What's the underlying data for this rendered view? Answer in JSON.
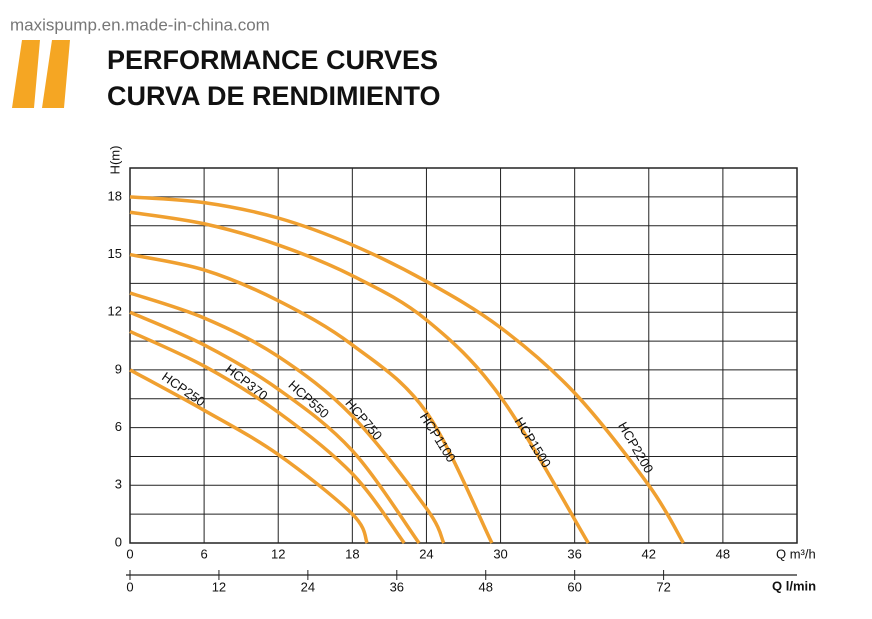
{
  "watermark": "maxispump.en.made-in-china.com",
  "chart_data": {
    "type": "line",
    "title": "PERFORMANCE CURVES",
    "subtitle": "CURVA DE RENDIMIENTO",
    "y_label": "H(m)",
    "x_label": "Q m³/h",
    "x2_label": "Q l/min",
    "xlim": [
      0,
      54
    ],
    "xticks": [
      0,
      6,
      12,
      18,
      24,
      30,
      36,
      42,
      48
    ],
    "ylim": [
      0,
      19.5
    ],
    "yticks": [
      0,
      3,
      6,
      9,
      12,
      15,
      18
    ],
    "ygrid": [
      1.5,
      4.5,
      7.5,
      10.5,
      13.5,
      16.5,
      19.5
    ],
    "x2lim": [
      0,
      90
    ],
    "x2ticks": [
      0,
      12,
      24,
      36,
      48,
      60,
      72
    ],
    "grid": true,
    "series": [
      {
        "name": "HCP250",
        "color": "#f0a030",
        "x": [
          0,
          6,
          12,
          18,
          19.2
        ],
        "values": [
          9,
          6.9,
          4.6,
          1.5,
          0
        ]
      },
      {
        "name": "HCP370",
        "color": "#f0a030",
        "x": [
          0,
          6,
          12,
          18,
          22.2
        ],
        "values": [
          11,
          9.2,
          6.8,
          3.6,
          0
        ]
      },
      {
        "name": "HCP550",
        "color": "#f0a030",
        "x": [
          0,
          6,
          12,
          18,
          23.4
        ],
        "values": [
          12,
          10.3,
          8.0,
          4.8,
          0
        ]
      },
      {
        "name": "HCP750",
        "color": "#f0a030",
        "x": [
          0,
          6,
          12,
          18,
          24,
          25.4
        ],
        "values": [
          13,
          11.7,
          9.7,
          6.6,
          1.8,
          0
        ]
      },
      {
        "name": "HCP1100",
        "color": "#f0a030",
        "x": [
          0,
          6,
          12,
          18,
          24,
          29.3
        ],
        "values": [
          15,
          14.2,
          12.6,
          10.3,
          6.8,
          0
        ]
      },
      {
        "name": "HCP1500",
        "color": "#f0a030",
        "x": [
          0,
          6,
          12,
          18,
          24,
          30,
          37.1
        ],
        "values": [
          17.2,
          16.6,
          15.5,
          13.9,
          11.6,
          7.6,
          0
        ]
      },
      {
        "name": "HCP2200",
        "color": "#f0a030",
        "x": [
          0,
          6,
          12,
          18,
          24,
          30,
          36,
          42,
          44.8
        ],
        "values": [
          18,
          17.7,
          16.9,
          15.5,
          13.6,
          11.2,
          7.8,
          3.0,
          0
        ]
      }
    ]
  }
}
